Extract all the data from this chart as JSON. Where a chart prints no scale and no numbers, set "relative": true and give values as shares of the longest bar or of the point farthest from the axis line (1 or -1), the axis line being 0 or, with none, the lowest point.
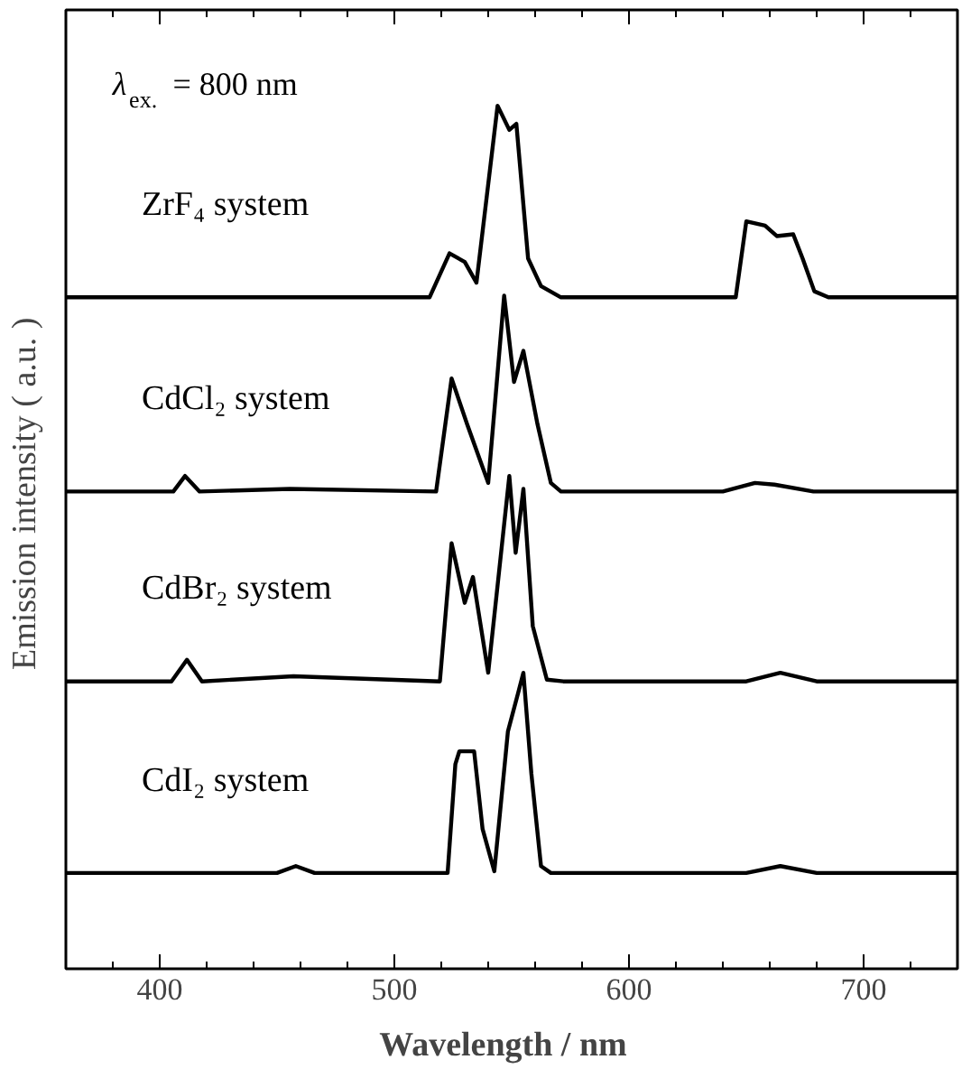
{
  "chart_data": {
    "type": "line",
    "relative": true,
    "xlabel": "Wavelength  /  nm",
    "ylabel": "Emission intensity  ( a.u. )",
    "xlim": [
      360,
      740
    ],
    "xticks": [
      {
        "value": 380,
        "label": null
      },
      400,
      {
        "value": 420,
        "label": null
      },
      {
        "value": 440,
        "label": null
      },
      {
        "value": 460,
        "label": null
      },
      {
        "value": 480,
        "label": null
      },
      500,
      {
        "value": 520,
        "label": null
      },
      {
        "value": 540,
        "label": null
      },
      {
        "value": 560,
        "label": null
      },
      {
        "value": 580,
        "label": null
      },
      600,
      {
        "value": 620,
        "label": null
      },
      {
        "value": 640,
        "label": null
      },
      {
        "value": 660,
        "label": null
      },
      {
        "value": 680,
        "label": null
      },
      700,
      {
        "value": 720,
        "label": null
      }
    ],
    "annotations": [
      "λ$_{ex.}$= 800 nm"
    ],
    "grid": false,
    "marker": "none",
    "line_style": "solid",
    "series": [
      {
        "name": "ZrF₄ system",
        "color": "#000000",
        "x": [
          360,
          515,
          523.5,
          530,
          535,
          544,
          549,
          552,
          557,
          562.5,
          571,
          645.5,
          650,
          658,
          663,
          670,
          674,
          679,
          685,
          740
        ],
        "values": [
          0.778,
          0.778,
          0.829,
          0.819,
          0.795,
          1.0,
          0.972,
          0.979,
          0.823,
          0.791,
          0.778,
          0.778,
          0.866,
          0.861,
          0.849,
          0.851,
          0.823,
          0.785,
          0.778,
          0.778
        ]
      },
      {
        "name": "CdCl₂ system",
        "color": "#000000",
        "x": [
          360,
          405.8,
          410.8,
          417,
          455.5,
          517.8,
          524.4,
          531,
          540,
          546.8,
          551,
          555,
          561,
          566.7,
          571,
          640,
          653.7,
          662,
          678.6,
          740
        ],
        "values": [
          0.553,
          0.553,
          0.571,
          0.553,
          0.556,
          0.553,
          0.684,
          0.631,
          0.563,
          0.78,
          0.68,
          0.716,
          0.631,
          0.563,
          0.553,
          0.553,
          0.563,
          0.561,
          0.553,
          0.553
        ]
      },
      {
        "name": "CdBr₂ system",
        "color": "#000000",
        "x": [
          360,
          405,
          411.6,
          418,
          457,
          519.4,
          524.4,
          530,
          533.5,
          540,
          549,
          551.7,
          555,
          559,
          565,
          572,
          650,
          664.5,
          680,
          740
        ],
        "values": [
          0.333,
          0.333,
          0.358,
          0.333,
          0.339,
          0.333,
          0.493,
          0.424,
          0.454,
          0.343,
          0.571,
          0.482,
          0.556,
          0.397,
          0.335,
          0.333,
          0.333,
          0.343,
          0.333,
          0.333
        ]
      },
      {
        "name": "CdI₂ system",
        "color": "#000000",
        "x": [
          360,
          450,
          458,
          466,
          522.7,
          526,
          527.7,
          534,
          537.6,
          542.6,
          548.4,
          552.6,
          555,
          558.4,
          562.5,
          566.7,
          650,
          664.5,
          680,
          740
        ],
        "values": [
          0.111,
          0.111,
          0.119,
          0.111,
          0.111,
          0.237,
          0.252,
          0.252,
          0.162,
          0.113,
          0.275,
          0.318,
          0.343,
          0.226,
          0.119,
          0.111,
          0.111,
          0.119,
          0.111,
          0.111
        ]
      }
    ]
  }
}
